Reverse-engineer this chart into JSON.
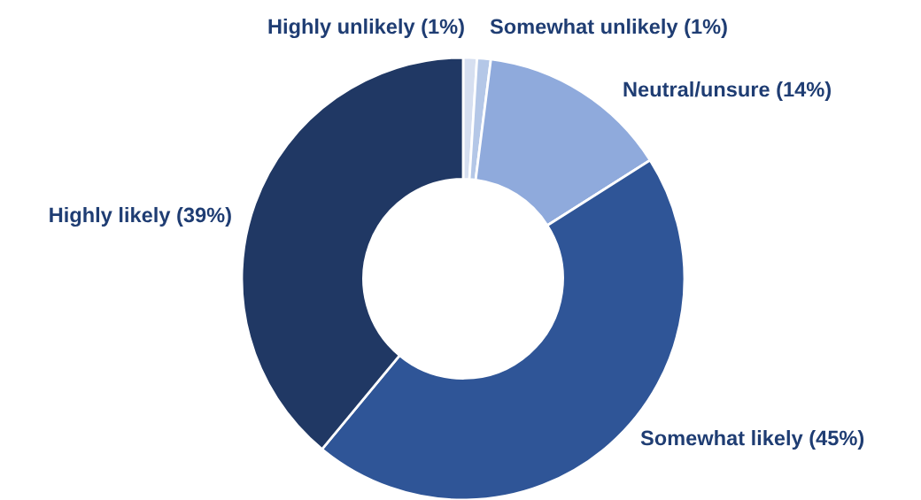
{
  "chart_data": {
    "type": "donut",
    "categories": [
      "Highly unlikely (1%)",
      "Somewhat unlikely (1%)",
      "Neutral/unsure (14%)",
      "Somewhat likely (45%)",
      "Highly likely (39%)"
    ],
    "values": [
      1,
      1,
      14,
      45,
      39
    ],
    "colors": [
      "#d6dff0",
      "#b4c7e7",
      "#8faadc",
      "#2f5597",
      "#203864"
    ]
  }
}
